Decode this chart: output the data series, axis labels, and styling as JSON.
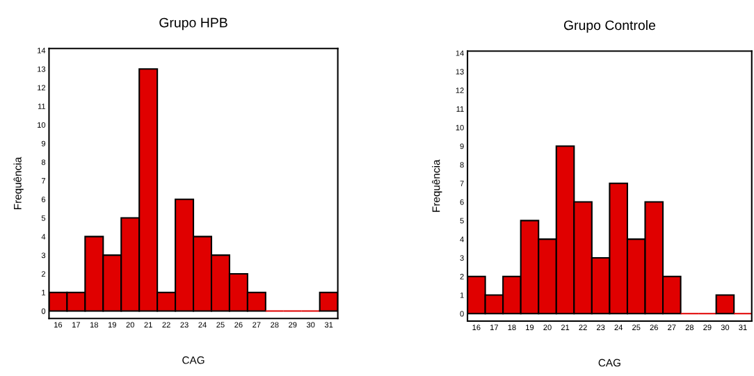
{
  "chart_data": [
    {
      "type": "bar",
      "title": "Grupo HPB",
      "xlabel": "CAG",
      "ylabel": "Frequência",
      "categories": [
        "16",
        "17",
        "18",
        "19",
        "20",
        "21",
        "22",
        "23",
        "24",
        "25",
        "26",
        "27",
        "28",
        "29",
        "30",
        "31"
      ],
      "values": [
        1,
        1,
        4,
        3,
        5,
        13,
        1,
        6,
        4,
        3,
        2,
        1,
        0,
        0,
        0,
        1
      ],
      "color": "#e00000",
      "ylim": [
        -0.4,
        14.1
      ],
      "yticks": [
        0,
        1,
        2,
        3,
        4,
        5,
        6,
        7,
        8,
        9,
        10,
        11,
        12,
        13,
        14
      ],
      "grid": false
    },
    {
      "type": "bar",
      "title": "Grupo Controle",
      "xlabel": "CAG",
      "ylabel": "Frequência",
      "categories": [
        "16",
        "17",
        "18",
        "19",
        "20",
        "21",
        "22",
        "23",
        "24",
        "25",
        "26",
        "27",
        "28",
        "29",
        "30",
        "31"
      ],
      "values": [
        2,
        1,
        2,
        5,
        4,
        9,
        6,
        3,
        7,
        4,
        6,
        2,
        0,
        0,
        1,
        0
      ],
      "color": "#e00000",
      "ylim": [
        -0.4,
        14.1
      ],
      "yticks": [
        0,
        1,
        2,
        3,
        4,
        5,
        6,
        7,
        8,
        9,
        10,
        11,
        12,
        13,
        14
      ],
      "grid": false
    }
  ]
}
